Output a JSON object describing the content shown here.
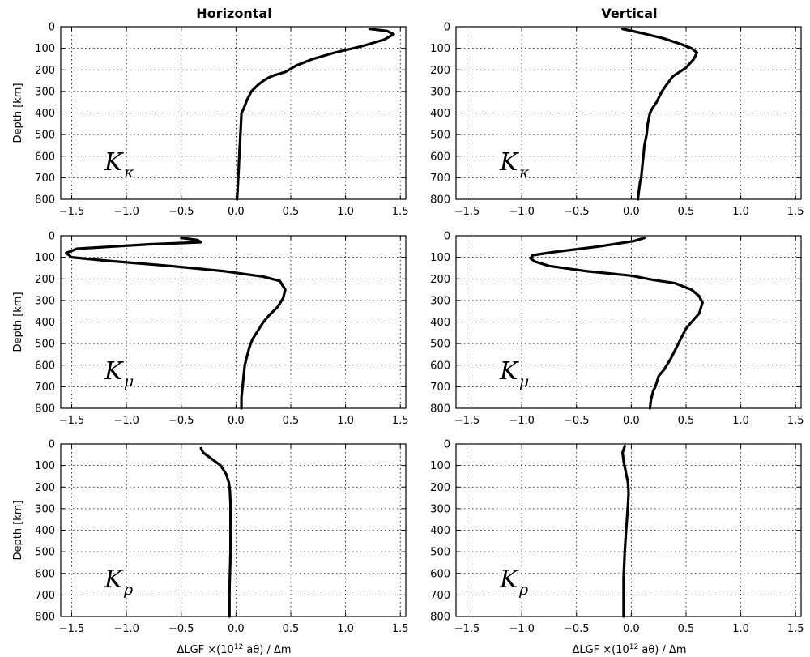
{
  "column_titles": [
    "Horizontal",
    "Vertical"
  ],
  "ylabel": "Depth [km]",
  "xlabel_prefix": "ΔLGF ×(10",
  "xlabel_exp": "12",
  "xlabel_suffix": " aθ) / Δm",
  "kernel_symbol": "K",
  "chart_data": [
    {
      "type": "line",
      "row": 0,
      "col": 0,
      "kernel_sub": "κ",
      "xlim": [
        -1.6,
        1.55
      ],
      "ylim": [
        800,
        0
      ],
      "xticks": [
        -1.5,
        -1.0,
        -0.5,
        0.0,
        0.5,
        1.0,
        1.5
      ],
      "yticks": [
        0,
        100,
        200,
        300,
        400,
        500,
        600,
        700,
        800
      ],
      "grid": true,
      "series": [
        {
          "x": [
            1.22,
            1.38,
            1.44,
            1.35,
            1.15,
            0.9,
            0.7,
            0.55,
            0.45,
            0.35,
            0.3,
            0.25,
            0.2,
            0.14,
            0.1,
            0.07,
            0.05,
            0.045,
            0.04,
            0.035,
            0.03,
            0.025,
            0.02,
            0.015,
            0.01
          ],
          "y": [
            10,
            20,
            35,
            60,
            90,
            120,
            150,
            180,
            210,
            225,
            235,
            250,
            270,
            300,
            340,
            380,
            400,
            450,
            500,
            550,
            600,
            650,
            700,
            750,
            800
          ]
        }
      ]
    },
    {
      "type": "line",
      "row": 0,
      "col": 1,
      "kernel_sub": "κ",
      "xlim": [
        -1.6,
        1.55
      ],
      "ylim": [
        800,
        0
      ],
      "xticks": [
        -1.5,
        -1.0,
        -0.5,
        0.0,
        0.5,
        1.0,
        1.5
      ],
      "yticks": [
        0,
        100,
        200,
        300,
        400,
        500,
        600,
        700,
        800
      ],
      "grid": true,
      "series": [
        {
          "x": [
            -0.08,
            0.1,
            0.3,
            0.45,
            0.55,
            0.6,
            0.57,
            0.5,
            0.38,
            0.32,
            0.28,
            0.23,
            0.19,
            0.17,
            0.15,
            0.14,
            0.12,
            0.11,
            0.1,
            0.09,
            0.08,
            0.07,
            0.06
          ],
          "y": [
            10,
            30,
            55,
            80,
            100,
            120,
            150,
            190,
            230,
            270,
            300,
            350,
            380,
            400,
            450,
            500,
            550,
            600,
            650,
            700,
            720,
            760,
            800
          ]
        }
      ]
    },
    {
      "type": "line",
      "row": 1,
      "col": 0,
      "kernel_sub": "μ",
      "xlim": [
        -1.6,
        1.55
      ],
      "ylim": [
        800,
        0
      ],
      "xticks": [
        -1.5,
        -1.0,
        -0.5,
        0.0,
        0.5,
        1.0,
        1.5
      ],
      "yticks": [
        0,
        100,
        200,
        300,
        400,
        500,
        600,
        700,
        800
      ],
      "grid": true,
      "series": [
        {
          "x": [
            -0.5,
            -0.35,
            -0.32,
            -0.8,
            -1.45,
            -1.55,
            -1.5,
            -1.2,
            -0.6,
            -0.1,
            0.25,
            0.4,
            0.45,
            0.43,
            0.38,
            0.3,
            0.25,
            0.2,
            0.15,
            0.12,
            0.1,
            0.08,
            0.07,
            0.06,
            0.05,
            0.05
          ],
          "y": [
            10,
            20,
            30,
            40,
            60,
            80,
            100,
            115,
            140,
            165,
            190,
            210,
            250,
            290,
            330,
            370,
            400,
            440,
            480,
            520,
            560,
            600,
            650,
            700,
            750,
            800
          ]
        }
      ]
    },
    {
      "type": "line",
      "row": 1,
      "col": 1,
      "kernel_sub": "μ",
      "xlim": [
        -1.6,
        1.55
      ],
      "ylim": [
        800,
        0
      ],
      "xticks": [
        -1.5,
        -1.0,
        -0.5,
        0.0,
        0.5,
        1.0,
        1.5
      ],
      "yticks": [
        0,
        100,
        200,
        300,
        400,
        500,
        600,
        700,
        800
      ],
      "grid": true,
      "series": [
        {
          "x": [
            0.12,
            0.02,
            -0.3,
            -0.7,
            -0.9,
            -0.92,
            -0.88,
            -0.75,
            -0.4,
            0.0,
            0.2,
            0.4,
            0.55,
            0.62,
            0.65,
            0.62,
            0.55,
            0.5,
            0.45,
            0.4,
            0.36,
            0.3,
            0.25,
            0.22,
            0.2,
            0.18,
            0.17
          ],
          "y": [
            10,
            25,
            50,
            75,
            90,
            105,
            120,
            140,
            165,
            185,
            205,
            220,
            250,
            280,
            310,
            360,
            400,
            430,
            480,
            530,
            570,
            620,
            650,
            700,
            720,
            760,
            800
          ]
        }
      ]
    },
    {
      "type": "line",
      "row": 2,
      "col": 0,
      "kernel_sub": "ρ",
      "xlim": [
        -1.6,
        1.55
      ],
      "ylim": [
        800,
        0
      ],
      "xticks": [
        -1.5,
        -1.0,
        -0.5,
        0.0,
        0.5,
        1.0,
        1.5
      ],
      "yticks": [
        0,
        100,
        200,
        300,
        400,
        500,
        600,
        700,
        800
      ],
      "grid": true,
      "series": [
        {
          "x": [
            -0.32,
            -0.3,
            -0.22,
            -0.14,
            -0.09,
            -0.065,
            -0.055,
            -0.05,
            -0.05,
            -0.05,
            -0.05,
            -0.052,
            -0.055,
            -0.058,
            -0.06,
            -0.06,
            -0.06
          ],
          "y": [
            20,
            40,
            70,
            100,
            140,
            180,
            220,
            280,
            350,
            420,
            480,
            550,
            600,
            650,
            700,
            750,
            800
          ]
        }
      ]
    },
    {
      "type": "line",
      "row": 2,
      "col": 1,
      "kernel_sub": "ρ",
      "xlim": [
        -1.6,
        1.55
      ],
      "ylim": [
        800,
        0
      ],
      "xticks": [
        -1.5,
        -1.0,
        -0.5,
        0.0,
        0.5,
        1.0,
        1.5
      ],
      "yticks": [
        0,
        100,
        200,
        300,
        400,
        500,
        600,
        700,
        800
      ],
      "grid": true,
      "series": [
        {
          "x": [
            -0.06,
            -0.08,
            -0.07,
            -0.05,
            -0.03,
            -0.025,
            -0.03,
            -0.04,
            -0.05,
            -0.06,
            -0.065,
            -0.07,
            -0.07,
            -0.07,
            -0.07
          ],
          "y": [
            10,
            40,
            80,
            130,
            180,
            230,
            280,
            350,
            420,
            500,
            560,
            620,
            680,
            740,
            800
          ]
        }
      ]
    }
  ]
}
